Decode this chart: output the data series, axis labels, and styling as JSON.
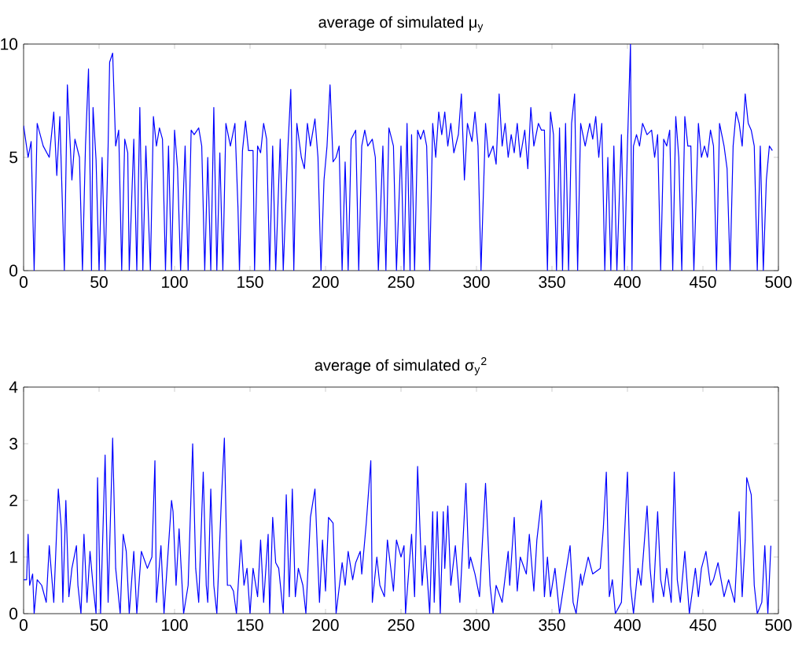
{
  "chart_data": [
    {
      "type": "line",
      "title": "average of simulated μ$_{y}$",
      "x": [
        0,
        3,
        5,
        7,
        9,
        13,
        17,
        20,
        22,
        24,
        27,
        29,
        32,
        34,
        37,
        39,
        41,
        43,
        45,
        46,
        48,
        50,
        52,
        54,
        56,
        57,
        59,
        61,
        63,
        65,
        67,
        69,
        70,
        73,
        75,
        77,
        79,
        81,
        84,
        86,
        88,
        90,
        92,
        94,
        96,
        98,
        100,
        102,
        104,
        107,
        109,
        111,
        113,
        116,
        118,
        120,
        122,
        124,
        126,
        128,
        130,
        132,
        134,
        137,
        140,
        142,
        143,
        145,
        147,
        149,
        152,
        153,
        155,
        157,
        159,
        161,
        163,
        165,
        167,
        170,
        172,
        175,
        177,
        179,
        181,
        184,
        186,
        188,
        190,
        193,
        195,
        197,
        199,
        201,
        203,
        205,
        207,
        209,
        211,
        213,
        215,
        217,
        220,
        222,
        224,
        226,
        228,
        231,
        233,
        235,
        238,
        240,
        242,
        245,
        247,
        250,
        252,
        254,
        256,
        257,
        259,
        261,
        263,
        265,
        267,
        269,
        271,
        273,
        275,
        277,
        279,
        281,
        283,
        285,
        288,
        290,
        292,
        294,
        297,
        299,
        301,
        303,
        306,
        308,
        311,
        313,
        315,
        317,
        319,
        321,
        323,
        325,
        327,
        329,
        332,
        334,
        336,
        338,
        341,
        343,
        345,
        347,
        349,
        351,
        353,
        355,
        357,
        359,
        361,
        363,
        365,
        367,
        369,
        372,
        375,
        377,
        379,
        381,
        383,
        385,
        387,
        389,
        391,
        393,
        396,
        398,
        400,
        402,
        403,
        404,
        406,
        408,
        410,
        413,
        416,
        418,
        420,
        422,
        424,
        426,
        428,
        430,
        432,
        434,
        436,
        438,
        440,
        442,
        444,
        447,
        449,
        451,
        453,
        455,
        457,
        459,
        461,
        464,
        466,
        468,
        470,
        472,
        474,
        476,
        478,
        480,
        482,
        484,
        486,
        488,
        490,
        492,
        494,
        496
      ],
      "series": [
        {
          "color": "#0000ff",
          "values": [
            6.4,
            5.0,
            5.7,
            0,
            6.5,
            5.5,
            5.0,
            7.0,
            4.2,
            6.8,
            0,
            8.2,
            4.0,
            5.8,
            5.0,
            0,
            5.5,
            8.9,
            0,
            7.2,
            4.9,
            0,
            5.0,
            0,
            5.5,
            9.2,
            9.6,
            5.5,
            6.2,
            0,
            5.8,
            5.2,
            0,
            5.8,
            0,
            7.2,
            0,
            5.5,
            0,
            6.8,
            5.5,
            6.3,
            5.8,
            0,
            5.5,
            0,
            6.2,
            4.5,
            0,
            5.5,
            0,
            6.2,
            6.0,
            6.3,
            5.5,
            0,
            5.0,
            0,
            7.2,
            0,
            5.2,
            0,
            6.5,
            5.5,
            6.5,
            2.8,
            0,
            5.3,
            6.6,
            5.3,
            5.3,
            0,
            5.5,
            5.2,
            6.5,
            5.8,
            0,
            5.5,
            0,
            5.8,
            0,
            5.3,
            8.0,
            0,
            6.5,
            5.0,
            4.5,
            6.5,
            5.5,
            6.7,
            5.0,
            0,
            4.0,
            5.5,
            8.2,
            4.8,
            5.0,
            5.5,
            0,
            4.8,
            0,
            5.8,
            6.2,
            0,
            5.5,
            6.2,
            5.5,
            5.8,
            5.0,
            0,
            5.5,
            0,
            6.3,
            5.5,
            0,
            5.5,
            0,
            6.5,
            0,
            6.0,
            0,
            6.2,
            5.8,
            6.2,
            5.5,
            0,
            6.5,
            5.0,
            7.0,
            6.0,
            7.0,
            5.5,
            6.5,
            5.2,
            6.0,
            7.8,
            4.0,
            6.5,
            5.7,
            7.0,
            5.5,
            0,
            6.5,
            5.0,
            5.5,
            4.7,
            7.8,
            5.5,
            6.5,
            5.0,
            6.0,
            5.2,
            6.5,
            5.0,
            6.2,
            4.5,
            7.2,
            5.5,
            6.5,
            6.2,
            6.2,
            0,
            7.0,
            6.0,
            0,
            6.3,
            0,
            6.5,
            0,
            6.5,
            7.8,
            0,
            6.5,
            5.5,
            6.5,
            5.8,
            6.8,
            5.0,
            6.5,
            0,
            5.0,
            0,
            5.5,
            0,
            6.0,
            0,
            5.5,
            10,
            0,
            5.5,
            6.0,
            5.5,
            6.5,
            6.0,
            6.2,
            5.0,
            6.0,
            0,
            5.8,
            5.5,
            6.2,
            0,
            6.8,
            5.0,
            0,
            6.8,
            5.5,
            5.5,
            0,
            6.5,
            5.0,
            5.5,
            5.0,
            6.2,
            5.5,
            0,
            6.5,
            5.5,
            4.5,
            0,
            5.5,
            7.0,
            6.5,
            5.5,
            7.8,
            6.5,
            6.2,
            5.5,
            0,
            5.5,
            0,
            4.0,
            5.5,
            5.3
          ]
        }
      ],
      "xlim": [
        0,
        500
      ],
      "ylim": [
        0,
        10
      ],
      "xticks": [
        0,
        50,
        100,
        150,
        200,
        250,
        300,
        350,
        400,
        450,
        500
      ],
      "yticks": [
        0,
        5,
        10
      ]
    },
    {
      "type": "line",
      "title": "average of simulated σ$_{y}$$^{2}$",
      "x": [
        0,
        2,
        3,
        4,
        6,
        7,
        9,
        12,
        15,
        17,
        20,
        23,
        25,
        26,
        28,
        30,
        32,
        35,
        36,
        38,
        40,
        42,
        44,
        46,
        48,
        49,
        51,
        54,
        56,
        59,
        61,
        64,
        66,
        68,
        70,
        73,
        75,
        78,
        82,
        85,
        87,
        88,
        91,
        93,
        95,
        98,
        99,
        101,
        103,
        104,
        106,
        109,
        112,
        114,
        116,
        119,
        121,
        122,
        124,
        126,
        128,
        131,
        133,
        135,
        137,
        139,
        141,
        144,
        146,
        148,
        150,
        152,
        155,
        157,
        159,
        162,
        163,
        165,
        167,
        169,
        172,
        174,
        176,
        178,
        180,
        182,
        185,
        187,
        190,
        193,
        196,
        198,
        200,
        202,
        205,
        207,
        211,
        213,
        215,
        218,
        220,
        223,
        224,
        227,
        230,
        231,
        234,
        236,
        239,
        241,
        245,
        247,
        250,
        252,
        253,
        257,
        259,
        261,
        264,
        266,
        269,
        271,
        272,
        274,
        276,
        278,
        279,
        281,
        283,
        286,
        289,
        293,
        295,
        296,
        299,
        302,
        306,
        309,
        311,
        313,
        317,
        321,
        322,
        325,
        327,
        329,
        333,
        335,
        338,
        340,
        343,
        345,
        347,
        349,
        352,
        355,
        359,
        362,
        364,
        366,
        369,
        370,
        374,
        377,
        382,
        384,
        386,
        388,
        390,
        392,
        396,
        400,
        402,
        404,
        407,
        409,
        413,
        415,
        417,
        420,
        422,
        424,
        426,
        429,
        431,
        433,
        435,
        438,
        441,
        445,
        447,
        449,
        452,
        455,
        457,
        460,
        464,
        467,
        471,
        474,
        476,
        478,
        479,
        482,
        484,
        486,
        489,
        491,
        493,
        495
      ],
      "series": [
        {
          "color": "#0000ff",
          "values": [
            0.6,
            0.6,
            1.4,
            0.5,
            0.7,
            0,
            0.6,
            0.5,
            0.2,
            1.2,
            0.2,
            2.2,
            1.5,
            0.2,
            2.0,
            0.3,
            0.8,
            1.2,
            0.5,
            0,
            1.4,
            0.2,
            1.1,
            0.5,
            0,
            2.4,
            0,
            2.8,
            0.2,
            3.1,
            0.8,
            0,
            1.4,
            1.1,
            0,
            1.1,
            0,
            1.1,
            0.8,
            1.0,
            2.7,
            0.2,
            1.2,
            0,
            0.8,
            2.0,
            1.8,
            0.5,
            1.5,
            1.0,
            0,
            0.5,
            3.0,
            0.8,
            0.2,
            2.5,
            0.5,
            0.2,
            2.2,
            0.5,
            0,
            2.0,
            3.1,
            0.5,
            0.5,
            0.4,
            0,
            1.3,
            0.5,
            0.8,
            0,
            0.8,
            0.3,
            1.3,
            0.2,
            1.4,
            0,
            1.7,
            0.9,
            0.8,
            0,
            2.1,
            0.3,
            2.2,
            0.3,
            0.8,
            0.5,
            0,
            1.7,
            2.2,
            0.2,
            1.3,
            0.4,
            1.7,
            1.6,
            0,
            0.9,
            0.5,
            1.1,
            0.6,
            0.9,
            1.1,
            0.7,
            1.6,
            2.7,
            0.2,
            1.0,
            0.5,
            0.3,
            1.3,
            0.4,
            1.3,
            1.0,
            1.2,
            0,
            1.4,
            0.3,
            2.6,
            0.5,
            1.2,
            0,
            1.8,
            0.2,
            1.8,
            0,
            1.8,
            0.8,
            1.9,
            0.5,
            1.2,
            0.2,
            2.3,
            0.8,
            1.0,
            0.7,
            0.3,
            2.3,
            0.5,
            0,
            0.5,
            0.2,
            1.1,
            0.5,
            1.7,
            0.4,
            1.0,
            0.7,
            1.4,
            0.4,
            1.3,
            2.0,
            0.3,
            1.0,
            0.3,
            0.8,
            0,
            0.7,
            1.2,
            0.2,
            0,
            0.7,
            0.5,
            1.0,
            0.7,
            0.8,
            1.5,
            2.5,
            0.3,
            0.6,
            0,
            0.2,
            2.5,
            0.5,
            0,
            0.8,
            0.5,
            1.9,
            0.8,
            0.2,
            1.8,
            0.6,
            0.3,
            0.8,
            0.2,
            2.5,
            0.6,
            0.2,
            1.1,
            0,
            0.8,
            0.3,
            0.8,
            1.1,
            0.5,
            0.6,
            0.9,
            0.3,
            0.6,
            0.2,
            1.8,
            0.3,
            1.3,
            2.4,
            2.1,
            0.5,
            0,
            0.2,
            1.2,
            0,
            1.2
          ]
        }
      ],
      "xlim": [
        0,
        500
      ],
      "ylim": [
        0,
        4
      ],
      "xticks": [
        0,
        50,
        100,
        150,
        200,
        250,
        300,
        350,
        400,
        450,
        500
      ],
      "yticks": [
        0,
        1,
        2,
        3,
        4
      ]
    }
  ]
}
